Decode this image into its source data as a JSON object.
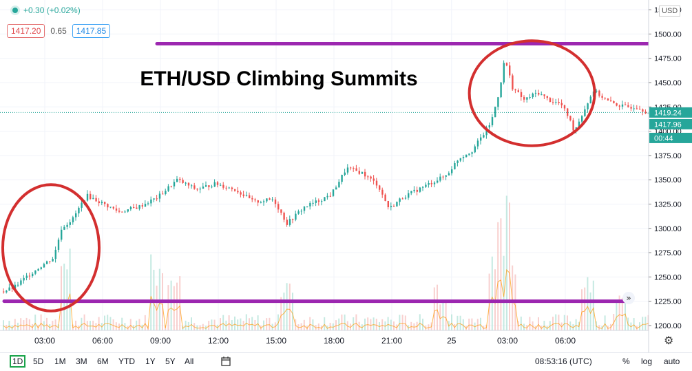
{
  "header": {
    "change": "+0.30 (+0.02%)",
    "sell_price": "1417.20",
    "spread": "0.65",
    "buy_price": "1417.85",
    "currency": "USD"
  },
  "chart_data": {
    "type": "candlestick",
    "title": "ETH/USD Climbing Summits",
    "ylim": [
      1195,
      1535
    ],
    "y_ticks": [
      "1525.00",
      "1500.00",
      "1475.00",
      "1450.00",
      "1425.00",
      "1400.00",
      "1375.00",
      "1350.00",
      "1325.00",
      "1300.00",
      "1275.00",
      "1250.00",
      "1225.00",
      "1200.00"
    ],
    "x_ticks": [
      "03:00",
      "06:00",
      "09:00",
      "12:00",
      "15:00",
      "18:00",
      "21:00",
      "25",
      "03:00",
      "06:00"
    ],
    "price_path": [
      [
        0,
        1235
      ],
      [
        0.6,
        1240
      ],
      [
        1.3,
        1252
      ],
      [
        2.0,
        1262
      ],
      [
        2.6,
        1270
      ],
      [
        3.0,
        1300
      ],
      [
        3.6,
        1310
      ],
      [
        4.3,
        1334
      ],
      [
        5.0,
        1327
      ],
      [
        6.0,
        1317
      ],
      [
        7.0,
        1322
      ],
      [
        8.0,
        1332
      ],
      [
        9.0,
        1350
      ],
      [
        10.0,
        1340
      ],
      [
        11.0,
        1346
      ],
      [
        12.0,
        1340
      ],
      [
        13.0,
        1327
      ],
      [
        14.0,
        1330
      ],
      [
        14.7,
        1305
      ],
      [
        15.6,
        1322
      ],
      [
        16.3,
        1328
      ],
      [
        17.0,
        1335
      ],
      [
        17.8,
        1362
      ],
      [
        18.6,
        1357
      ],
      [
        19.4,
        1345
      ],
      [
        20.0,
        1320
      ],
      [
        20.7,
        1332
      ],
      [
        21.5,
        1340
      ],
      [
        22.3,
        1348
      ],
      [
        23.0,
        1355
      ],
      [
        23.6,
        1372
      ],
      [
        24.3,
        1380
      ],
      [
        24.9,
        1397
      ],
      [
        25.3,
        1410
      ],
      [
        25.7,
        1440
      ],
      [
        26.0,
        1475
      ],
      [
        26.4,
        1445
      ],
      [
        27.0,
        1432
      ],
      [
        27.7,
        1440
      ],
      [
        28.3,
        1432
      ],
      [
        28.9,
        1428
      ],
      [
        29.3,
        1415
      ],
      [
        29.6,
        1400
      ],
      [
        30.0,
        1417
      ],
      [
        30.6,
        1442
      ],
      [
        31.4,
        1430
      ],
      [
        32.2,
        1425
      ],
      [
        32.9,
        1425
      ],
      [
        33.4,
        1419
      ],
      [
        33.6,
        1418
      ]
    ],
    "last_price": "1419.24",
    "second_price": "1417.96",
    "countdown": "00:44",
    "annotations": [
      {
        "kind": "horizontal-line",
        "y": 1490,
        "color": "#9c27b0"
      },
      {
        "kind": "horizontal-line",
        "y": 1225,
        "color": "#9c27b0"
      },
      {
        "kind": "ellipse",
        "x": [
          0.0,
          5.0
        ],
        "y": [
          1215,
          1345
        ],
        "color": "#d32f2f"
      },
      {
        "kind": "ellipse",
        "x": [
          24.2,
          30.7
        ],
        "y": [
          1385,
          1493
        ],
        "color": "#d32f2f"
      }
    ]
  },
  "toolbar": {
    "timeframes": [
      "1D",
      "5D",
      "1M",
      "3M",
      "6M",
      "YTD",
      "1Y",
      "5Y",
      "All"
    ],
    "active": "1D",
    "time": "08:53:16 (UTC)",
    "percent": "%",
    "log": "log",
    "auto": "auto"
  }
}
